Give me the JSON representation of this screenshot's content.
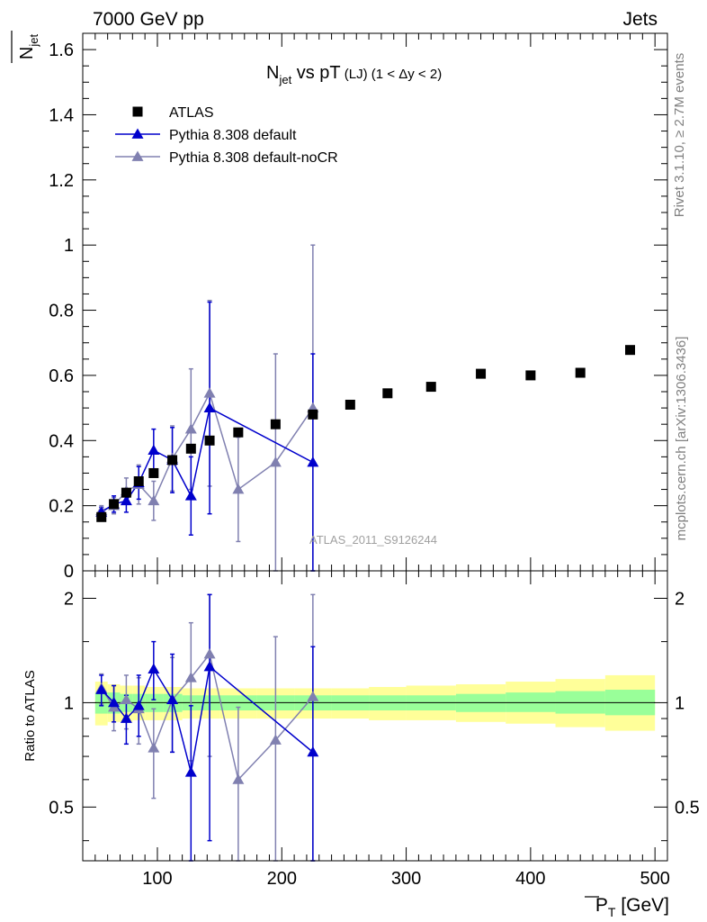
{
  "header": {
    "left": "7000 GeV pp",
    "right": "Jets"
  },
  "side_text": {
    "rivet": "Rivet 3.1.10, ≥ 2.7M events",
    "mcplots": "mcplots.cern.ch [arXiv:1306.3436]"
  },
  "watermark": "ATLAS_2011_S9126244",
  "title": {
    "main": "N",
    "sub": "jet",
    "rest": " vs pT",
    "small": " (LJ) (1 < Δy < 2)"
  },
  "ylabel_top": {
    "main": "N",
    "sub": "jet"
  },
  "ylabel_ratio": "Ratio to ATLAS",
  "xlabel": {
    "main": "P",
    "sub": "T",
    "unit": " [GeV]"
  },
  "colors": {
    "data": "#000000",
    "default": "#0000cc",
    "nocr": "#8080b0",
    "band_inner": "#99ff99",
    "band_outer": "#ffff99"
  },
  "legend": [
    {
      "label": "ATLAS",
      "marker": "square",
      "color": "#000000"
    },
    {
      "label": "Pythia 8.308 default",
      "marker": "triangle",
      "color": "#0000cc"
    },
    {
      "label": "Pythia 8.308 default-noCR",
      "marker": "triangle",
      "color": "#8080b0"
    }
  ],
  "chart_data": [
    {
      "type": "scatter",
      "panel": "main",
      "xlim": [
        40,
        510
      ],
      "ylim": [
        0,
        1.65
      ],
      "xticks": [
        100,
        200,
        300,
        400,
        500
      ],
      "yticks": [
        0,
        0.2,
        0.4,
        0.6,
        0.8,
        1,
        1.2,
        1.4,
        1.6
      ],
      "ytick_labels": [
        "0",
        "0.2",
        "0.4",
        "0.6",
        "0.8",
        "1",
        "1.2",
        "1.4",
        "1.6"
      ],
      "series": [
        {
          "name": "ATLAS",
          "x": [
            55,
            65,
            75,
            85,
            97,
            112,
            127,
            142,
            165,
            195,
            225,
            255,
            285,
            320,
            360,
            400,
            440,
            480
          ],
          "y": [
            0.165,
            0.205,
            0.24,
            0.275,
            0.3,
            0.34,
            0.375,
            0.4,
            0.425,
            0.45,
            0.48,
            0.51,
            0.545,
            0.565,
            0.605,
            0.6,
            0.608,
            0.678
          ]
        },
        {
          "name": "Pythia 8.308 default",
          "x": [
            55,
            65,
            75,
            85,
            97,
            112,
            127,
            142,
            225
          ],
          "y": [
            0.18,
            0.205,
            0.215,
            0.27,
            0.37,
            0.34,
            0.23,
            0.5,
            0.333
          ],
          "err": [
            0.015,
            0.025,
            0.035,
            0.05,
            0.065,
            0.1,
            0.12,
            0.325,
            0.333
          ]
        },
        {
          "name": "Pythia 8.308 default-noCR",
          "x": [
            55,
            65,
            75,
            85,
            97,
            112,
            127,
            142,
            165,
            195,
            225
          ],
          "y": [
            0.185,
            0.2,
            0.245,
            0.265,
            0.215,
            0.345,
            0.435,
            0.545,
            0.25,
            0.333,
            0.5
          ],
          "err": [
            0.015,
            0.025,
            0.04,
            0.06,
            0.06,
            0.1,
            0.185,
            0.285,
            0.16,
            0.333,
            0.5
          ]
        }
      ]
    },
    {
      "type": "scatter",
      "panel": "ratio",
      "xlim": [
        40,
        510
      ],
      "ylim": [
        0.35,
        2.4
      ],
      "yscale": "log",
      "yticks": [
        0.5,
        1,
        2
      ],
      "ytick_labels": [
        "0.5",
        "1",
        "2"
      ],
      "xticks": [
        100,
        200,
        300,
        400,
        500
      ],
      "xtick_labels": [
        "100",
        "200",
        "300",
        "400",
        "500"
      ],
      "band": {
        "x_edges": [
          50,
          60,
          70,
          80,
          90,
          105,
          120,
          135,
          150,
          180,
          210,
          240,
          270,
          300,
          340,
          380,
          420,
          460,
          500
        ],
        "inner_lo": [
          0.93,
          0.93,
          0.94,
          0.94,
          0.94,
          0.94,
          0.95,
          0.95,
          0.95,
          0.95,
          0.95,
          0.95,
          0.95,
          0.95,
          0.94,
          0.94,
          0.93,
          0.92
        ],
        "inner_hi": [
          1.07,
          1.07,
          1.06,
          1.06,
          1.06,
          1.06,
          1.05,
          1.05,
          1.05,
          1.05,
          1.05,
          1.05,
          1.05,
          1.05,
          1.06,
          1.07,
          1.08,
          1.09
        ],
        "outer_lo": [
          0.86,
          0.88,
          0.88,
          0.89,
          0.89,
          0.89,
          0.9,
          0.9,
          0.9,
          0.9,
          0.9,
          0.9,
          0.89,
          0.89,
          0.88,
          0.87,
          0.85,
          0.83
        ],
        "outer_hi": [
          1.15,
          1.13,
          1.12,
          1.12,
          1.11,
          1.11,
          1.1,
          1.1,
          1.1,
          1.1,
          1.1,
          1.1,
          1.11,
          1.12,
          1.13,
          1.15,
          1.17,
          1.2
        ]
      },
      "series": [
        {
          "name": "Pythia 8.308 default",
          "x": [
            55,
            65,
            75,
            85,
            97,
            112,
            127,
            142,
            225
          ],
          "y": [
            1.09,
            1.0,
            0.9,
            0.98,
            1.25,
            1.02,
            0.63,
            1.27,
            0.72
          ],
          "lo": [
            0.98,
            0.88,
            0.76,
            0.8,
            1.02,
            0.72,
            0.3,
            0.4,
            0.3
          ],
          "hi": [
            1.2,
            1.12,
            1.05,
            1.2,
            1.5,
            1.38,
            0.98,
            2.05,
            1.45
          ]
        },
        {
          "name": "Pythia 8.308 default-noCR",
          "x": [
            55,
            65,
            75,
            85,
            97,
            112,
            127,
            142,
            165,
            195,
            225
          ],
          "y": [
            1.1,
            0.97,
            1.02,
            0.96,
            0.74,
            1.02,
            1.18,
            1.38,
            0.6,
            0.78,
            1.04
          ],
          "lo": [
            0.99,
            0.83,
            0.84,
            0.76,
            0.53,
            0.72,
            0.68,
            0.7,
            0.3,
            0.3,
            0.3
          ],
          "hi": [
            1.21,
            1.12,
            1.2,
            1.18,
            0.96,
            1.35,
            1.7,
            2.05,
            0.97,
            1.55,
            2.05
          ]
        }
      ]
    }
  ]
}
